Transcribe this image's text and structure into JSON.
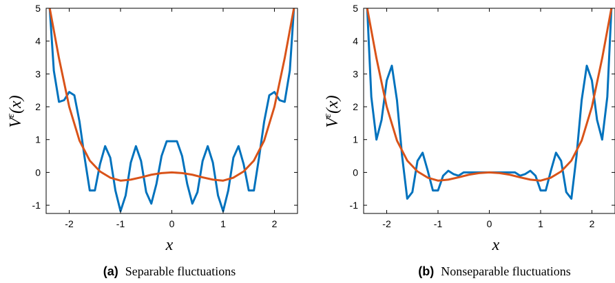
{
  "chart_data": [
    {
      "type": "line",
      "caption_label": "(a)",
      "caption_text": "Separable fluctuations",
      "xlabel": "x",
      "ylabel": "V^ε(x)",
      "xlim": [
        -2.45,
        2.45
      ],
      "ylim": [
        -1.25,
        5
      ],
      "xticks": [
        -2,
        -1,
        0,
        1,
        2
      ],
      "yticks": [
        5,
        4,
        3,
        2,
        1,
        0,
        -1
      ],
      "grid": false,
      "series": [
        {
          "color": "#0072BD",
          "x": [
            -2.38,
            -2.3,
            -2.2,
            -2.1,
            -2.0,
            -1.9,
            -1.8,
            -1.7,
            -1.6,
            -1.5,
            -1.4,
            -1.3,
            -1.2,
            -1.1,
            -1.0,
            -0.9,
            -0.8,
            -0.7,
            -0.6,
            -0.5,
            -0.4,
            -0.3,
            -0.2,
            -0.1,
            0.0,
            0.1,
            0.2,
            0.3,
            0.4,
            0.5,
            0.6,
            0.7,
            0.8,
            0.9,
            1.0,
            1.1,
            1.2,
            1.3,
            1.4,
            1.5,
            1.6,
            1.7,
            1.8,
            1.9,
            2.0,
            2.1,
            2.2,
            2.3,
            2.38
          ],
          "y": [
            5.0,
            3.1,
            2.15,
            2.2,
            2.45,
            2.35,
            1.55,
            0.45,
            -0.55,
            -0.55,
            0.25,
            0.8,
            0.45,
            -0.55,
            -1.18,
            -0.7,
            0.3,
            0.8,
            0.35,
            -0.6,
            -0.95,
            -0.35,
            0.5,
            0.95,
            0.95,
            0.95,
            0.5,
            -0.35,
            -0.95,
            -0.6,
            0.35,
            0.8,
            0.3,
            -0.7,
            -1.18,
            -0.55,
            0.45,
            0.8,
            0.25,
            -0.55,
            -0.55,
            0.45,
            1.55,
            2.35,
            2.45,
            2.2,
            2.15,
            3.1,
            5.0
          ]
        },
        {
          "color": "#D95319",
          "x": [
            -2.38,
            -2.2,
            -2.0,
            -1.8,
            -1.6,
            -1.4,
            -1.2,
            -1.0,
            -0.8,
            -0.6,
            -0.4,
            -0.2,
            0.0,
            0.2,
            0.4,
            0.6,
            0.8,
            1.0,
            1.2,
            1.4,
            1.6,
            1.8,
            2.0,
            2.2,
            2.38
          ],
          "y": [
            5.0,
            3.48,
            2.0,
            0.97,
            0.36,
            0.03,
            -0.16,
            -0.25,
            -0.22,
            -0.15,
            -0.07,
            -0.02,
            0.0,
            -0.02,
            -0.07,
            -0.15,
            -0.22,
            -0.25,
            -0.16,
            0.03,
            0.36,
            0.97,
            2.0,
            3.48,
            5.0
          ]
        }
      ]
    },
    {
      "type": "line",
      "caption_label": "(b)",
      "caption_text": "Nonseparable fluctuations",
      "xlabel": "x",
      "ylabel": "V^ε(x)",
      "xlim": [
        -2.45,
        2.45
      ],
      "ylim": [
        -1.25,
        5
      ],
      "xticks": [
        -2,
        -1,
        0,
        1,
        2
      ],
      "yticks": [
        5,
        4,
        3,
        2,
        1,
        0,
        -1
      ],
      "grid": false,
      "series": [
        {
          "color": "#0072BD",
          "x": [
            -2.38,
            -2.3,
            -2.2,
            -2.1,
            -2.0,
            -1.9,
            -1.8,
            -1.7,
            -1.6,
            -1.5,
            -1.4,
            -1.3,
            -1.2,
            -1.1,
            -1.0,
            -0.9,
            -0.8,
            -0.7,
            -0.6,
            -0.5,
            -0.4,
            -0.3,
            -0.2,
            -0.1,
            0.0,
            0.1,
            0.2,
            0.3,
            0.4,
            0.5,
            0.6,
            0.7,
            0.8,
            0.9,
            1.0,
            1.1,
            1.2,
            1.3,
            1.4,
            1.5,
            1.6,
            1.7,
            1.8,
            1.9,
            2.0,
            2.1,
            2.2,
            2.3,
            2.38
          ],
          "y": [
            5.0,
            2.3,
            1.0,
            1.6,
            2.8,
            3.25,
            2.2,
            0.5,
            -0.8,
            -0.6,
            0.35,
            0.6,
            0.05,
            -0.55,
            -0.55,
            -0.1,
            0.05,
            -0.05,
            -0.1,
            0.0,
            0.0,
            0.0,
            0.0,
            0.0,
            0.0,
            0.0,
            0.0,
            0.0,
            0.0,
            0.0,
            -0.1,
            -0.05,
            0.05,
            -0.1,
            -0.55,
            -0.55,
            0.05,
            0.6,
            0.35,
            -0.6,
            -0.8,
            0.5,
            2.2,
            3.25,
            2.8,
            1.6,
            1.0,
            2.3,
            5.0
          ]
        },
        {
          "color": "#D95319",
          "x": [
            -2.38,
            -2.2,
            -2.0,
            -1.8,
            -1.6,
            -1.4,
            -1.2,
            -1.0,
            -0.8,
            -0.6,
            -0.4,
            -0.2,
            0.0,
            0.2,
            0.4,
            0.6,
            0.8,
            1.0,
            1.2,
            1.4,
            1.6,
            1.8,
            2.0,
            2.2,
            2.38
          ],
          "y": [
            5.0,
            3.48,
            2.0,
            0.97,
            0.36,
            0.03,
            -0.16,
            -0.25,
            -0.22,
            -0.15,
            -0.07,
            -0.02,
            0.0,
            -0.02,
            -0.07,
            -0.15,
            -0.22,
            -0.25,
            -0.16,
            0.03,
            0.36,
            0.97,
            2.0,
            3.48,
            5.0
          ]
        }
      ]
    }
  ]
}
